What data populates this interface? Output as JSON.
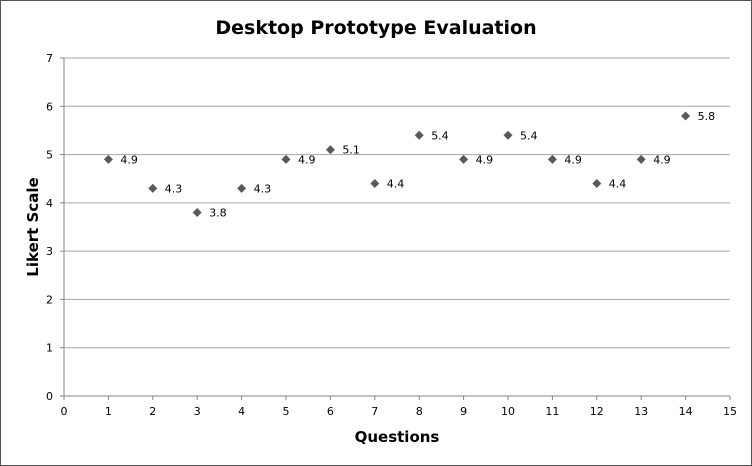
{
  "chart_data": {
    "type": "scatter",
    "title": "Desktop Prototype Evaluation",
    "xlabel": "Questions",
    "ylabel": "Likert Scale",
    "xlim": [
      0,
      15
    ],
    "ylim": [
      0,
      7
    ],
    "x_ticks": [
      "0",
      "1",
      "2",
      "3",
      "4",
      "5",
      "6",
      "7",
      "8",
      "9",
      "10",
      "11",
      "12",
      "13",
      "14",
      "15"
    ],
    "y_ticks": [
      "0",
      "1",
      "2",
      "3",
      "4",
      "5",
      "6",
      "7"
    ],
    "grid": "horizontal major gridlines",
    "legend": "none",
    "marker": "diamond",
    "marker_color": "#595959",
    "series": [
      {
        "x": [
          1,
          2,
          3,
          4,
          5,
          6,
          7,
          8,
          9,
          10,
          11,
          12,
          13,
          14
        ],
        "y": [
          4.9,
          4.3,
          3.8,
          4.3,
          4.9,
          5.1,
          4.4,
          5.4,
          4.9,
          5.4,
          4.9,
          4.4,
          4.9,
          5.8
        ],
        "labels": [
          "4.9",
          "4.3",
          "3.8",
          "4.3",
          "4.9",
          "5.1",
          "4.4",
          "5.4",
          "4.9",
          "5.4",
          "4.9",
          "4.4",
          "4.9",
          "5.8"
        ]
      }
    ]
  }
}
